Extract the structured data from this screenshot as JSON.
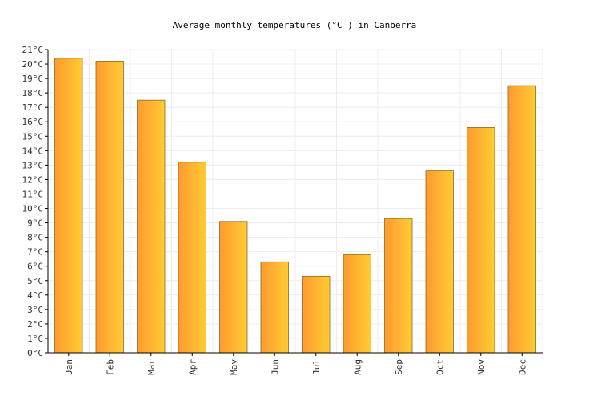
{
  "chart_data": {
    "type": "bar",
    "title": "Average monthly temperatures (°C ) in Canberra",
    "xlabel": "",
    "ylabel": "",
    "categories": [
      "Jan",
      "Feb",
      "Mar",
      "Apr",
      "May",
      "Jun",
      "Jul",
      "Aug",
      "Sep",
      "Oct",
      "Nov",
      "Dec"
    ],
    "values": [
      20.4,
      20.2,
      17.5,
      13.2,
      9.1,
      6.3,
      5.3,
      6.8,
      9.3,
      12.6,
      15.6,
      18.5
    ],
    "ylim": [
      0,
      21
    ],
    "yticks": [
      "0°C",
      "1°C",
      "2°C",
      "3°C",
      "4°C",
      "5°C",
      "6°C",
      "7°C",
      "8°C",
      "9°C",
      "10°C",
      "11°C",
      "12°C",
      "13°C",
      "14°C",
      "15°C",
      "16°C",
      "17°C",
      "18°C",
      "19°C",
      "20°C",
      "21°C"
    ],
    "grid": true,
    "legend": "none",
    "colors": {
      "bar_start": "#ff9a2e",
      "bar_end": "#ffcc33",
      "bar_stroke": "#8a6a2a"
    }
  }
}
